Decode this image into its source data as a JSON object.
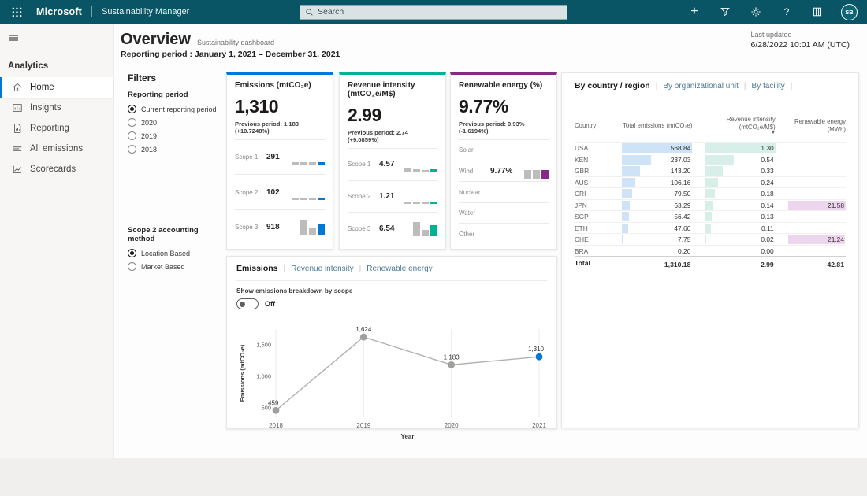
{
  "topbar": {
    "brand": "Microsoft",
    "app": "Sustainability Manager",
    "search_placeholder": "Search",
    "avatar_initials": "SB"
  },
  "sidebar": {
    "section_label": "Analytics",
    "items": [
      {
        "label": "Home",
        "icon": "home-icon",
        "active": true
      },
      {
        "label": "Insights",
        "icon": "insights-icon",
        "active": false
      },
      {
        "label": "Reporting",
        "icon": "reporting-icon",
        "active": false
      },
      {
        "label": "All emissions",
        "icon": "all-emissions-icon",
        "active": false
      },
      {
        "label": "Scorecards",
        "icon": "scorecards-icon",
        "active": false
      }
    ]
  },
  "header": {
    "title": "Overview",
    "subtitle": "Sustainability dashboard",
    "reporting_period": "Reporting period : January 1, 2021 – December 31, 2021",
    "last_updated_label": "Last updated",
    "last_updated_value": "6/28/2022 10:01 AM (UTC)"
  },
  "filters": {
    "title": "Filters",
    "groups": [
      {
        "label": "Reporting period",
        "options": [
          "Current reporting period",
          "2020",
          "2019",
          "2018"
        ],
        "selected": "Current reporting period"
      },
      {
        "label": "Scope 2 accounting method",
        "options": [
          "Location Based",
          "Market Based"
        ],
        "selected": "Location Based"
      }
    ]
  },
  "kpis": [
    {
      "title": "Emissions (mtCO₂e)",
      "value": "1,310",
      "previous": "Previous period: 1,183 (+10.7248%)",
      "accent": "#0078D4",
      "rows": [
        {
          "label": "Scope 1",
          "value": "291",
          "bars": [
            4,
            4,
            4,
            4
          ]
        },
        {
          "label": "Scope 2",
          "value": "102",
          "bars": [
            3,
            3,
            3,
            3
          ]
        },
        {
          "label": "Scope 3",
          "value": "918",
          "bars": [
            18,
            8,
            13
          ]
        }
      ]
    },
    {
      "title": "Revenue intensity (mtCO₂e/M$)",
      "value": "2.99",
      "previous": "Previous period: 2.74 (+9.0859%)",
      "accent": "#00B294",
      "rows": [
        {
          "label": "Scope 1",
          "value": "4.57",
          "bars": [
            5,
            4,
            3,
            4
          ]
        },
        {
          "label": "Scope 2",
          "value": "1.21",
          "bars": [
            2,
            2,
            2,
            2
          ]
        },
        {
          "label": "Scope 3",
          "value": "6.54",
          "bars": [
            18,
            8,
            14
          ]
        }
      ]
    },
    {
      "title": "Renewable energy (%)",
      "value": "9.77%",
      "previous": "Previous period: 9.93% (-1.6194%)",
      "accent": "#8A2889",
      "rows": [
        {
          "label": "Solar",
          "value": "",
          "bars": []
        },
        {
          "label": "Wind",
          "value": "9.77%",
          "bars": [
            11,
            11,
            11
          ]
        },
        {
          "label": "Nuclear",
          "value": "",
          "bars": []
        },
        {
          "label": "Water",
          "value": "",
          "bars": []
        },
        {
          "label": "Other",
          "value": "",
          "bars": []
        }
      ]
    }
  ],
  "country_table": {
    "tabs": [
      {
        "label": "By country / region",
        "active": true
      },
      {
        "label": "By organizational unit",
        "active": false
      },
      {
        "label": "By facility",
        "active": false
      }
    ],
    "columns": [
      "Country",
      "Total emissions (mtCO₂e)",
      "Revenue intensity (mtCO₂e/M$)",
      "Renewable energy (MWh)"
    ],
    "sorted_column_index": 2,
    "bar_colors": {
      "emissions": "#cfe3f6",
      "intensity": "#d7efe8",
      "renewable": "#eed5ee"
    },
    "rows": [
      {
        "country": "USA",
        "emissions": "568.84",
        "intensity": "1.30",
        "renewable": ""
      },
      {
        "country": "KEN",
        "emissions": "237.03",
        "intensity": "0.54",
        "renewable": ""
      },
      {
        "country": "GBR",
        "emissions": "143.20",
        "intensity": "0.33",
        "renewable": ""
      },
      {
        "country": "AUS",
        "emissions": "106.16",
        "intensity": "0.24",
        "renewable": ""
      },
      {
        "country": "CRI",
        "emissions": "79.50",
        "intensity": "0.18",
        "renewable": ""
      },
      {
        "country": "JPN",
        "emissions": "63.29",
        "intensity": "0.14",
        "renewable": "21.58"
      },
      {
        "country": "SGP",
        "emissions": "56.42",
        "intensity": "0.13",
        "renewable": ""
      },
      {
        "country": "ETH",
        "emissions": "47.60",
        "intensity": "0.11",
        "renewable": ""
      },
      {
        "country": "CHE",
        "emissions": "7.75",
        "intensity": "0.02",
        "renewable": "21.24"
      },
      {
        "country": "BRA",
        "emissions": "0.20",
        "intensity": "0.00",
        "renewable": ""
      }
    ],
    "total_row": {
      "country": "Total",
      "emissions": "1,310.18",
      "intensity": "2.99",
      "renewable": "42.81"
    }
  },
  "trend": {
    "tabs": [
      {
        "label": "Emissions",
        "active": true
      },
      {
        "label": "Revenue intensity",
        "active": false
      },
      {
        "label": "Renewable energy",
        "active": false
      }
    ],
    "toggle_label": "Show emissions breakdown by scope",
    "toggle_state": "Off"
  },
  "chart_data": {
    "type": "line",
    "x": [
      "2018",
      "2019",
      "2020",
      "2021"
    ],
    "values": [
      459,
      1624,
      1183,
      1310
    ],
    "point_labels": [
      "459",
      "1,624",
      "1,183",
      "1,310"
    ],
    "xlabel": "Year",
    "ylabel": "Emissions (mtCO₂e)",
    "yticks": [
      500,
      1000,
      1500
    ],
    "ytick_labels": [
      "500",
      "1,000",
      "1,500"
    ],
    "ylim": [
      350,
      1750
    ],
    "grid": "vertical",
    "line_color": "#b3b1ad",
    "point_color": "#a19f9d",
    "highlight_color": "#0078d4",
    "highlight_index": 3
  }
}
